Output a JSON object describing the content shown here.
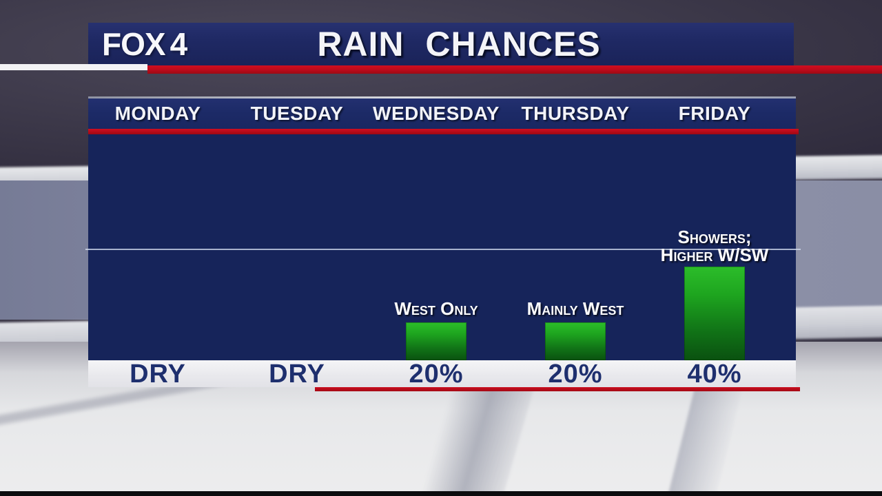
{
  "brand": {
    "fox": "FOX",
    "four": "4"
  },
  "header": {
    "title": "RAIN CHANCES"
  },
  "days": [
    "MONDAY",
    "TUESDAY",
    "WEDNESDAY",
    "THURSDAY",
    "FRIDAY"
  ],
  "values_row": [
    "DRY",
    "DRY",
    "20%",
    "20%",
    "40%"
  ],
  "annotations": {
    "wednesday": "West Only",
    "thursday": "Mainly West",
    "friday_line1": "Showers;",
    "friday_line2": "Higher W/SW"
  },
  "chart_data": {
    "type": "bar",
    "title": "RAIN CHANCES",
    "categories": [
      "Monday",
      "Tuesday",
      "Wednesday",
      "Thursday",
      "Friday"
    ],
    "values": [
      0,
      0,
      20,
      20,
      40
    ],
    "value_labels": [
      "DRY",
      "DRY",
      "20%",
      "20%",
      "40%"
    ],
    "bar_annotations": [
      "",
      "",
      "West Only",
      "Mainly West",
      "Showers; Higher W/SW"
    ],
    "ylim": [
      0,
      100
    ],
    "gridline_values": [
      50
    ],
    "legend": false,
    "bar_color_top": "#2cbd2a",
    "bar_color_bottom": "#0a5110"
  },
  "colors": {
    "header_navy": "#1f2964",
    "panel_navy": "#16245a",
    "accent_red": "#c00b1b",
    "strip_bg": "#e9e9ed",
    "value_text": "#1e2f6e",
    "gridline": "#d4ddf0"
  }
}
